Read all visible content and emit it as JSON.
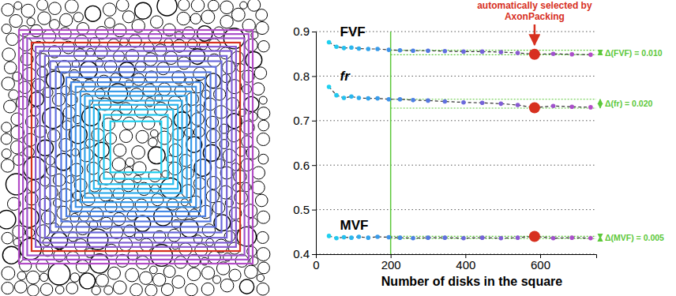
{
  "chart_data": {
    "type": "line",
    "x_label": "Number of disks in the square",
    "x": [
      35,
      55,
      75,
      95,
      115,
      140,
      165,
      195,
      225,
      260,
      300,
      345,
      395,
      445,
      495,
      540,
      585,
      635,
      685,
      735
    ],
    "xlim": [
      0,
      750
    ],
    "xticks": [
      0,
      200,
      400,
      600
    ],
    "ylim": [
      0.4,
      0.9
    ],
    "yticks": [
      0.4,
      0.5,
      0.6,
      0.7,
      0.8,
      0.9
    ],
    "grid": true,
    "marker": "circle",
    "line_style": "dashed",
    "colors": [
      "#1fd0ef",
      "#22c8ef",
      "#26bfee",
      "#2ab6ee",
      "#2eaded",
      "#33a4ec",
      "#389bea",
      "#3e92e8",
      "#4589e6",
      "#4d80e4",
      "#5678e2",
      "#6070df",
      "#6a69dc",
      "#7563d9",
      "#805ed6",
      "#8b5ad3",
      "#d7301f",
      "#a052cd",
      "#aa4fca",
      "#b34cc7"
    ],
    "series": [
      {
        "name": "FVF",
        "values": [
          0.876,
          0.866,
          0.863,
          0.864,
          0.862,
          0.861,
          0.861,
          0.859,
          0.858,
          0.857,
          0.857,
          0.856,
          0.855,
          0.855,
          0.854,
          0.852,
          0.849,
          0.85,
          0.849,
          0.848
        ],
        "delta": {
          "label": "Δ(FVF) = 0.010",
          "range": [
            0.848,
            0.858
          ]
        }
      },
      {
        "name": "fr",
        "values": [
          0.776,
          0.757,
          0.751,
          0.754,
          0.751,
          0.75,
          0.75,
          0.748,
          0.748,
          0.746,
          0.745,
          0.743,
          0.741,
          0.74,
          0.738,
          0.735,
          0.729,
          0.733,
          0.731,
          0.73
        ],
        "delta": {
          "label": "Δ(fr) = 0.020",
          "range": [
            0.728,
            0.748
          ]
        }
      },
      {
        "name": "MVF",
        "values": [
          0.441,
          0.436,
          0.438,
          0.437,
          0.439,
          0.437,
          0.439,
          0.438,
          0.437,
          0.436,
          0.437,
          0.437,
          0.436,
          0.437,
          0.436,
          0.437,
          0.44,
          0.436,
          0.437,
          0.436
        ],
        "delta": {
          "label": "Δ(MVF) = 0.005",
          "range": [
            0.435,
            0.44
          ]
        }
      }
    ],
    "annotations": [
      {
        "type": "vline",
        "x": 200
      },
      {
        "type": "arrow",
        "text": "automatically selected by AxonPacking",
        "x": 585
      }
    ]
  }
}
